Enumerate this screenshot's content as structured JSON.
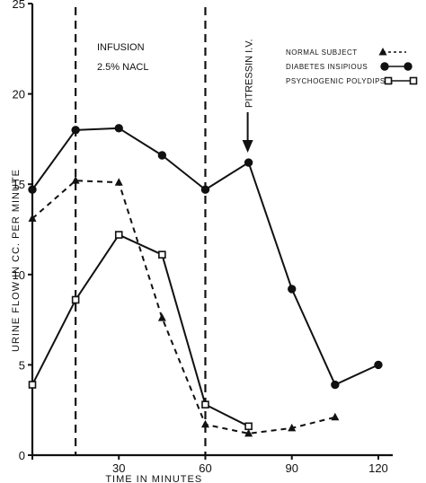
{
  "chart_data": {
    "type": "line",
    "xlabel": "TIME IN MINUTES",
    "ylabel": "URINE FLOW IN CC. PER MINUTE",
    "xlim": [
      0,
      125
    ],
    "ylim": [
      0,
      25
    ],
    "xticks": [
      0,
      30,
      60,
      90,
      120
    ],
    "xtick_labels": [
      "",
      "30",
      "60",
      "90",
      "120"
    ],
    "yticks": [
      0,
      5,
      10,
      15,
      20,
      25
    ],
    "ytick_labels": [
      "0",
      "5",
      "10",
      "15",
      "20",
      "25"
    ],
    "grid": false,
    "legend_position": "top-right",
    "vertical_lines": [
      15,
      60
    ],
    "annotations": {
      "infusion_line1": "INFUSION",
      "infusion_line2": "2.5% NACL",
      "pitressin": "PITRESSIN I.V.",
      "pitressin_x": 75
    },
    "series": [
      {
        "name": "NORMAL SUBJECT",
        "marker": "triangle",
        "line_style": "dashed",
        "x": [
          0,
          15,
          30,
          45,
          60,
          75,
          90,
          105
        ],
        "y": [
          13.1,
          15.2,
          15.1,
          7.6,
          1.7,
          1.2,
          1.5,
          2.1
        ]
      },
      {
        "name": "DIABETES INSIPIOUS",
        "marker": "circle",
        "line_style": "solid",
        "x": [
          0,
          15,
          30,
          45,
          60,
          75,
          90,
          105,
          120
        ],
        "y": [
          14.7,
          18.0,
          18.1,
          16.6,
          14.7,
          16.2,
          9.2,
          3.9,
          5.0
        ]
      },
      {
        "name": "PSYCHOGENIC POLYDIPSIA",
        "marker": "square",
        "line_style": "solid",
        "x": [
          0,
          15,
          30,
          45,
          60,
          75
        ],
        "y": [
          3.9,
          8.6,
          12.2,
          11.1,
          2.8,
          1.6
        ]
      }
    ]
  }
}
